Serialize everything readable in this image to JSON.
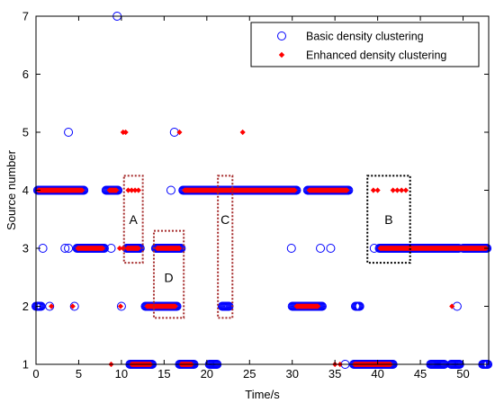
{
  "chart_data": {
    "type": "scatter",
    "xlabel": "Time/s",
    "ylabel": "Source number",
    "xlim": [
      0,
      53
    ],
    "ylim": [
      1,
      7
    ],
    "xticks": [
      0,
      5,
      10,
      15,
      20,
      25,
      30,
      35,
      40,
      45,
      50
    ],
    "yticks": [
      1,
      2,
      3,
      4,
      5,
      6,
      7
    ],
    "grid": false,
    "legend_position": "top-right",
    "series": [
      {
        "name": "Basic density clustering",
        "marker": "open-circle",
        "color": "#0000ff",
        "segments": [
          {
            "y": 4,
            "x0": 0.2,
            "x1": 5.6
          },
          {
            "y": 4,
            "x0": 8.2,
            "x1": 9.6
          },
          {
            "y": 4,
            "x0": 17.2,
            "x1": 30.5
          },
          {
            "y": 4,
            "x0": 31.8,
            "x1": 36.6
          },
          {
            "y": 3,
            "x0": 4.8,
            "x1": 8.0
          },
          {
            "y": 3,
            "x0": 10.6,
            "x1": 12.2
          },
          {
            "y": 3,
            "x0": 14.0,
            "x1": 17.0
          },
          {
            "y": 3,
            "x0": 40.2,
            "x1": 49.5
          },
          {
            "y": 3,
            "x0": 50.0,
            "x1": 52.8
          },
          {
            "y": 2,
            "x0": 0.0,
            "x1": 0.6
          },
          {
            "y": 2,
            "x0": 12.8,
            "x1": 16.5
          },
          {
            "y": 2,
            "x0": 21.8,
            "x1": 22.6
          },
          {
            "y": 2,
            "x0": 30.0,
            "x1": 33.5
          },
          {
            "y": 2,
            "x0": 37.4,
            "x1": 37.9
          },
          {
            "y": 1,
            "x0": 11.0,
            "x1": 13.6
          },
          {
            "y": 1,
            "x0": 16.8,
            "x1": 18.5
          },
          {
            "y": 1,
            "x0": 20.3,
            "x1": 21.2
          },
          {
            "y": 1,
            "x0": 37.2,
            "x1": 41.8
          },
          {
            "y": 1,
            "x0": 46.2,
            "x1": 47.8
          },
          {
            "y": 1,
            "x0": 48.6,
            "x1": 49.6
          },
          {
            "y": 1,
            "x0": 52.3,
            "x1": 52.9
          }
        ],
        "points": [
          {
            "x": 9.5,
            "y": 7
          },
          {
            "x": 3.8,
            "y": 5
          },
          {
            "x": 16.2,
            "y": 5
          },
          {
            "x": 15.8,
            "y": 4
          },
          {
            "x": 0.8,
            "y": 3
          },
          {
            "x": 3.4,
            "y": 3
          },
          {
            "x": 3.8,
            "y": 3
          },
          {
            "x": 8.8,
            "y": 3
          },
          {
            "x": 29.9,
            "y": 3
          },
          {
            "x": 33.3,
            "y": 3
          },
          {
            "x": 34.5,
            "y": 3
          },
          {
            "x": 39.6,
            "y": 3
          },
          {
            "x": 1.6,
            "y": 2
          },
          {
            "x": 4.5,
            "y": 2
          },
          {
            "x": 10.0,
            "y": 2
          },
          {
            "x": 49.3,
            "y": 2
          },
          {
            "x": 36.2,
            "y": 1
          }
        ]
      },
      {
        "name": "Enhanced density clustering",
        "marker": "diamond",
        "color": "#ff0000",
        "segments": [
          {
            "y": 4,
            "x0": 0.3,
            "x1": 5.4
          },
          {
            "y": 4,
            "x0": 8.6,
            "x1": 9.4
          },
          {
            "y": 4,
            "x0": 17.4,
            "x1": 30.3
          },
          {
            "y": 4,
            "x0": 32.0,
            "x1": 36.4
          },
          {
            "y": 3,
            "x0": 4.9,
            "x1": 7.8
          },
          {
            "y": 3,
            "x0": 10.7,
            "x1": 12.0
          },
          {
            "y": 3,
            "x0": 14.2,
            "x1": 16.8
          },
          {
            "y": 3,
            "x0": 40.3,
            "x1": 52.7
          },
          {
            "y": 2,
            "x0": 13.0,
            "x1": 16.3
          },
          {
            "y": 2,
            "x0": 30.5,
            "x1": 33.0
          },
          {
            "y": 1,
            "x0": 11.2,
            "x1": 13.4
          },
          {
            "y": 1,
            "x0": 17.0,
            "x1": 18.2
          },
          {
            "y": 1,
            "x0": 37.3,
            "x1": 41.5
          }
        ],
        "points": [
          {
            "x": 10.2,
            "y": 5
          },
          {
            "x": 10.5,
            "y": 5
          },
          {
            "x": 16.8,
            "y": 5
          },
          {
            "x": 24.2,
            "y": 5
          },
          {
            "x": 10.8,
            "y": 4
          },
          {
            "x": 11.2,
            "y": 4
          },
          {
            "x": 11.6,
            "y": 4
          },
          {
            "x": 12.0,
            "y": 4
          },
          {
            "x": 39.5,
            "y": 4
          },
          {
            "x": 40.0,
            "y": 4
          },
          {
            "x": 41.8,
            "y": 4
          },
          {
            "x": 42.3,
            "y": 4
          },
          {
            "x": 42.8,
            "y": 4
          },
          {
            "x": 43.3,
            "y": 4
          },
          {
            "x": 9.8,
            "y": 3
          },
          {
            "x": 10.2,
            "y": 3
          },
          {
            "x": 1.8,
            "y": 2
          },
          {
            "x": 4.3,
            "y": 2
          },
          {
            "x": 9.9,
            "y": 2
          },
          {
            "x": 48.7,
            "y": 2
          },
          {
            "x": 8.8,
            "y": 1
          },
          {
            "x": 35.0,
            "y": 1
          },
          {
            "x": 35.6,
            "y": 1
          }
        ]
      }
    ],
    "annotations": [
      {
        "label": "A",
        "x0": 10.3,
        "x1": 12.5,
        "y0": 2.75,
        "y1": 4.25,
        "color": "#a52a2a"
      },
      {
        "label": "D",
        "x0": 13.8,
        "x1": 17.3,
        "y0": 1.8,
        "y1": 3.3,
        "color": "#a52a2a"
      },
      {
        "label": "C",
        "x0": 21.3,
        "x1": 23.0,
        "y0": 1.8,
        "y1": 4.25,
        "color": "#a52a2a"
      },
      {
        "label": "B",
        "x0": 38.8,
        "x1": 43.8,
        "y0": 2.75,
        "y1": 4.25,
        "color": "#000000"
      }
    ]
  }
}
